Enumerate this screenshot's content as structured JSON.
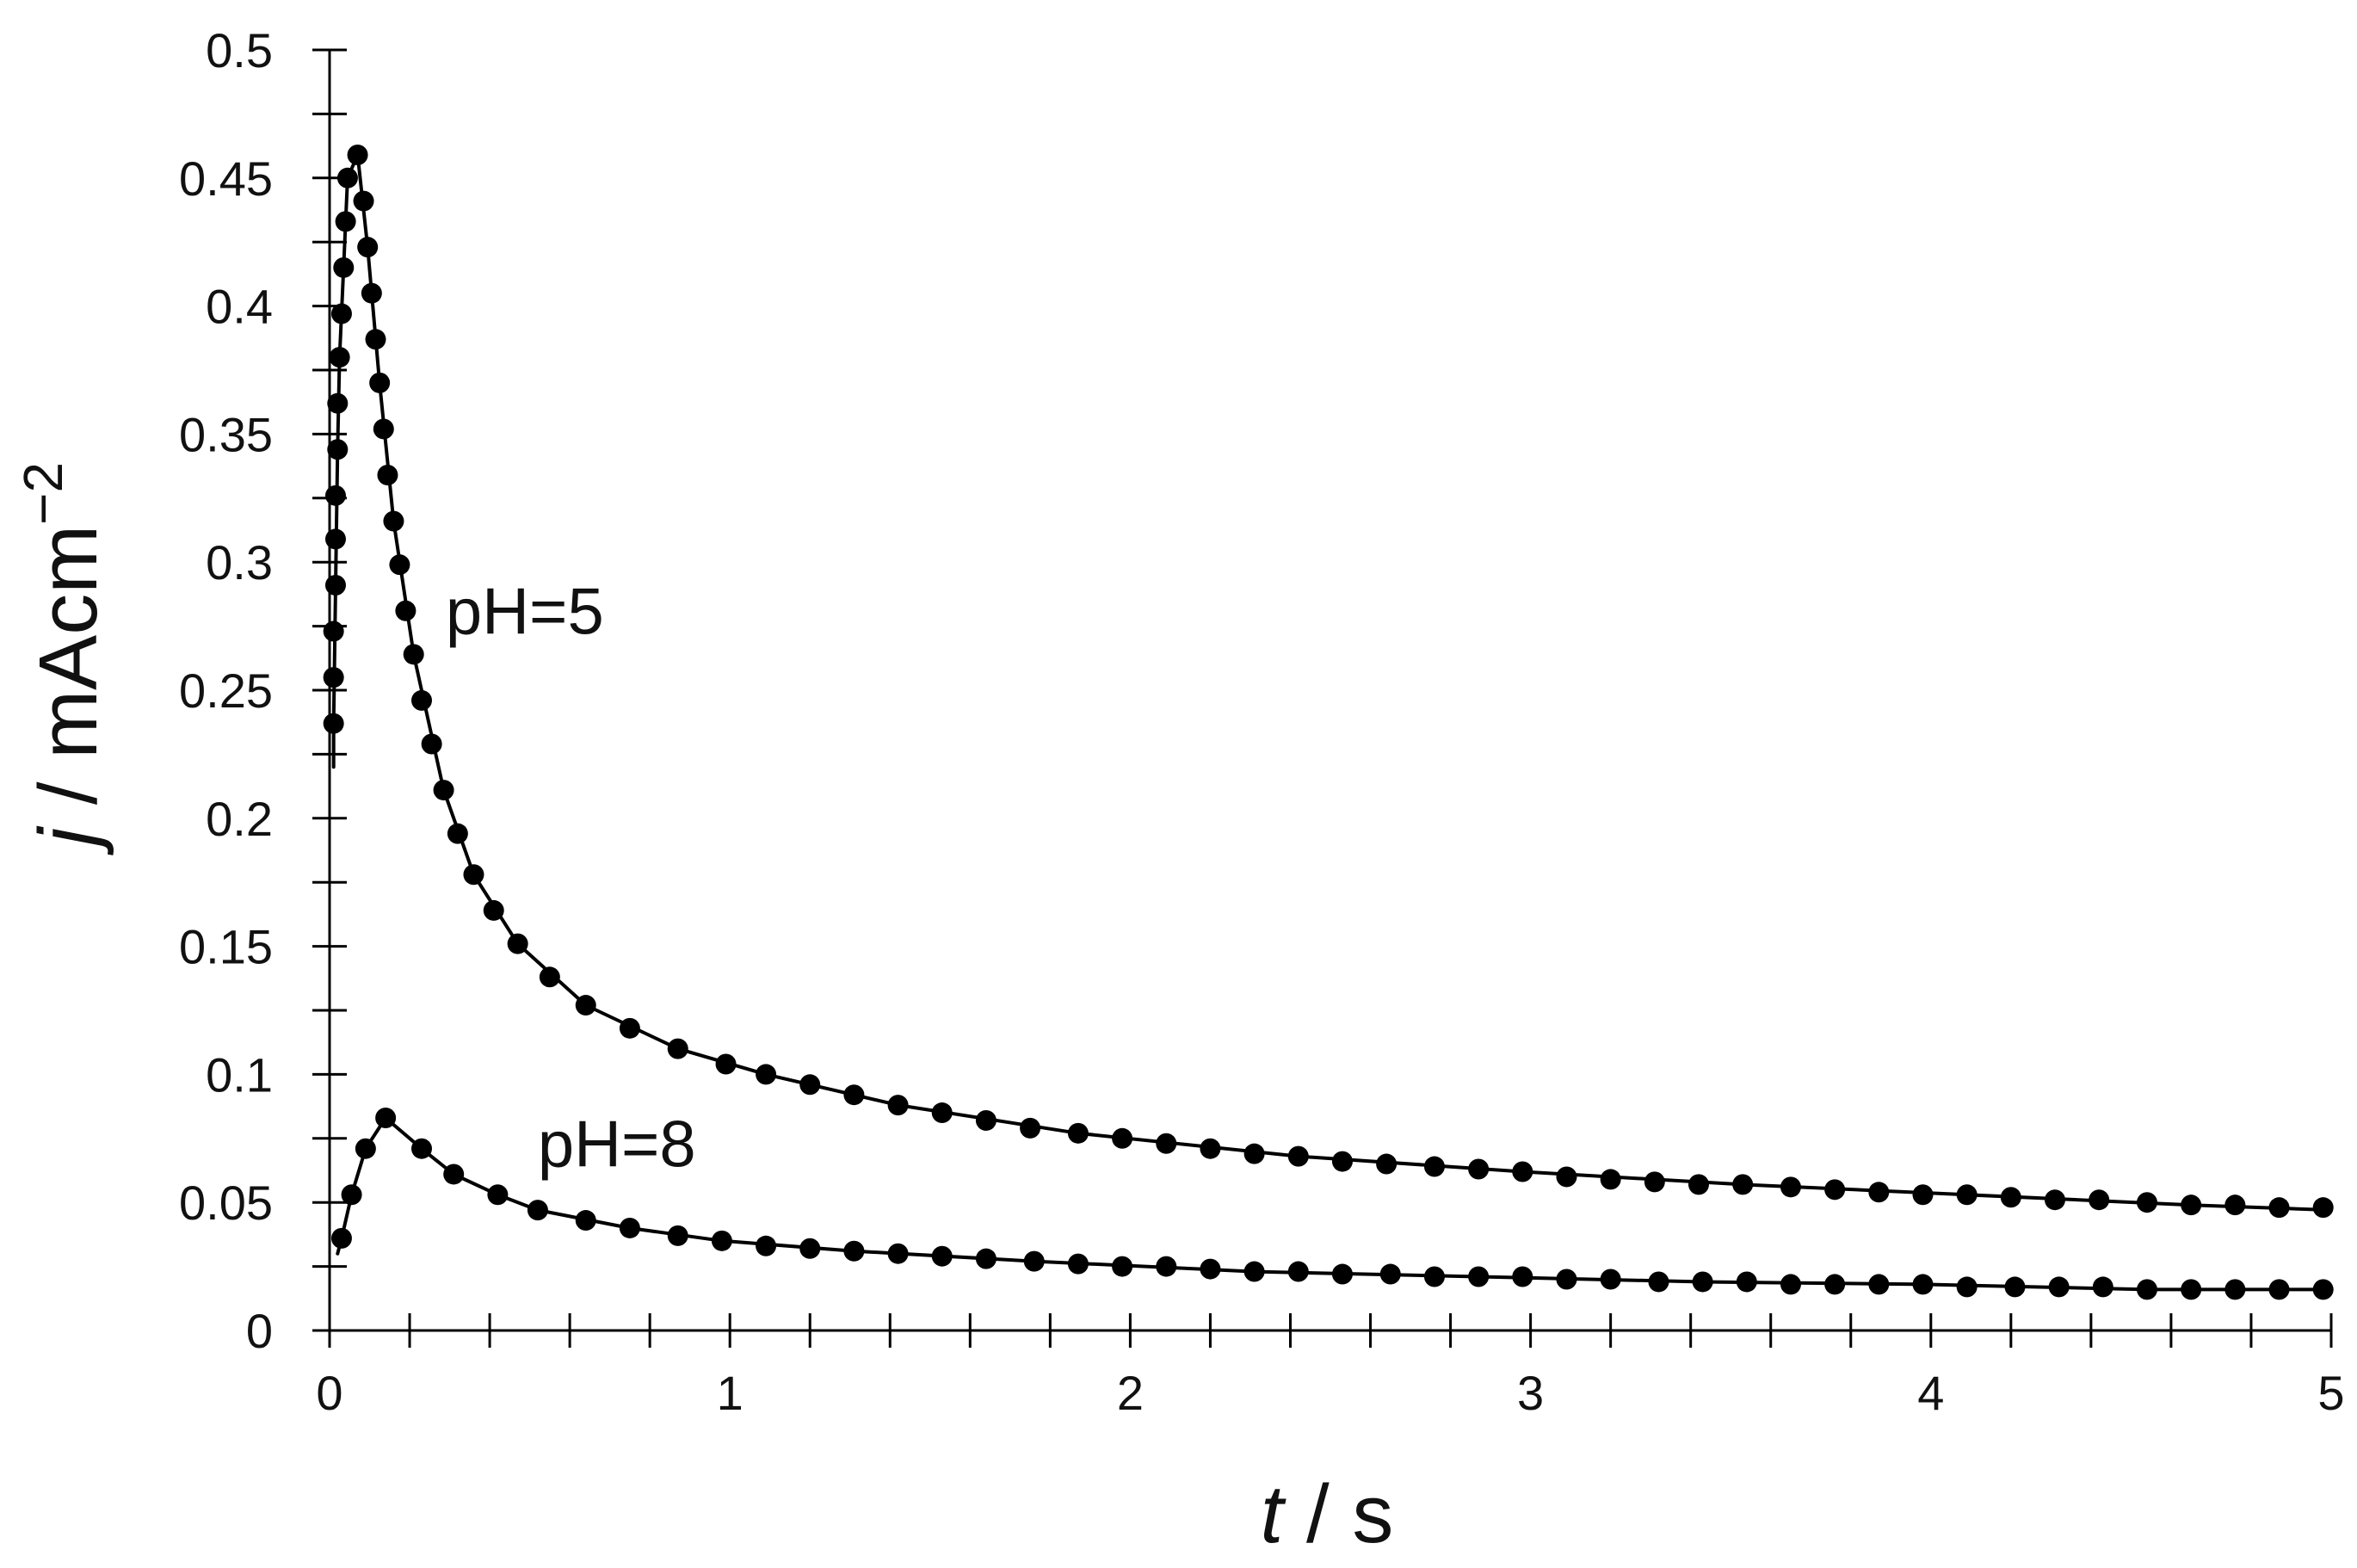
{
  "chart_data": {
    "type": "scatter",
    "title": "",
    "xlabel": {
      "var": "t",
      "unit": " / s"
    },
    "ylabel": {
      "var": "j",
      "unit": " / mAcm",
      "sup": "−2"
    },
    "xlim": [
      0,
      5
    ],
    "ylim": [
      0,
      0.5
    ],
    "x_ticks": [
      0,
      1,
      2,
      3,
      4,
      5
    ],
    "x_tick_labels": [
      "0",
      "1",
      "2",
      "3",
      "4",
      "5"
    ],
    "y_ticks": [
      0,
      0.05,
      0.1,
      0.15,
      0.2,
      0.25,
      0.3,
      0.35,
      0.4,
      0.45,
      0.5
    ],
    "y_tick_labels": [
      "0",
      "0.05",
      "0.1",
      "0.15",
      "0.2",
      "0.25",
      "0.3",
      "0.35",
      "0.4",
      "0.45",
      "0.5"
    ],
    "x_minor_step": 0.2,
    "y_minor_step": 0.025,
    "grid": false,
    "line_color": "#000000",
    "marker_color": "#000000",
    "series": [
      {
        "name": "pH=5",
        "label_at": [
          0.29,
          0.272
        ],
        "points": [
          [
            0.01,
            0.237
          ],
          [
            0.01,
            0.255
          ],
          [
            0.01,
            0.273
          ],
          [
            0.015,
            0.291
          ],
          [
            0.015,
            0.309
          ],
          [
            0.015,
            0.326
          ],
          [
            0.02,
            0.344
          ],
          [
            0.02,
            0.362
          ],
          [
            0.025,
            0.38
          ],
          [
            0.03,
            0.397
          ],
          [
            0.035,
            0.415
          ],
          [
            0.04,
            0.433
          ],
          [
            0.045,
            0.45
          ],
          [
            0.07,
            0.459
          ],
          [
            0.085,
            0.441
          ],
          [
            0.095,
            0.423
          ],
          [
            0.105,
            0.405
          ],
          [
            0.115,
            0.387
          ],
          [
            0.125,
            0.37
          ],
          [
            0.135,
            0.352
          ],
          [
            0.145,
            0.334
          ],
          [
            0.16,
            0.316
          ],
          [
            0.175,
            0.299
          ],
          [
            0.19,
            0.281
          ],
          [
            0.21,
            0.264
          ],
          [
            0.23,
            0.246
          ],
          [
            0.255,
            0.229
          ],
          [
            0.285,
            0.211
          ],
          [
            0.32,
            0.194
          ],
          [
            0.36,
            0.178
          ],
          [
            0.41,
            0.164
          ],
          [
            0.47,
            0.151
          ],
          [
            0.55,
            0.138
          ],
          [
            0.64,
            0.127
          ],
          [
            0.75,
            0.118
          ],
          [
            0.87,
            0.11
          ],
          [
            0.99,
            0.104
          ],
          [
            1.09,
            0.1
          ],
          [
            1.2,
            0.096
          ],
          [
            1.31,
            0.092
          ],
          [
            1.42,
            0.088
          ],
          [
            1.53,
            0.085
          ],
          [
            1.64,
            0.082
          ],
          [
            1.75,
            0.079
          ],
          [
            1.87,
            0.077
          ],
          [
            1.98,
            0.075
          ],
          [
            2.09,
            0.073
          ],
          [
            2.2,
            0.071
          ],
          [
            2.31,
            0.069
          ],
          [
            2.42,
            0.068
          ],
          [
            2.53,
            0.066
          ],
          [
            2.64,
            0.065
          ],
          [
            2.76,
            0.064
          ],
          [
            2.87,
            0.063
          ],
          [
            2.98,
            0.062
          ],
          [
            3.09,
            0.06
          ],
          [
            3.2,
            0.059
          ],
          [
            3.31,
            0.058
          ],
          [
            3.42,
            0.057
          ],
          [
            3.53,
            0.057
          ],
          [
            3.65,
            0.056
          ],
          [
            3.76,
            0.055
          ],
          [
            3.87,
            0.054
          ],
          [
            3.98,
            0.053
          ],
          [
            4.09,
            0.053
          ],
          [
            4.2,
            0.052
          ],
          [
            4.31,
            0.051
          ],
          [
            4.42,
            0.051
          ],
          [
            4.54,
            0.05
          ],
          [
            4.65,
            0.049
          ],
          [
            4.76,
            0.049
          ],
          [
            4.87,
            0.048
          ],
          [
            4.98,
            0.048
          ]
        ]
      },
      {
        "name": "pH=8",
        "label_at": [
          0.52,
          0.064
        ],
        "points": [
          [
            0.03,
            0.036
          ],
          [
            0.055,
            0.053
          ],
          [
            0.09,
            0.071
          ],
          [
            0.14,
            0.083
          ],
          [
            0.23,
            0.071
          ],
          [
            0.31,
            0.061
          ],
          [
            0.42,
            0.053
          ],
          [
            0.52,
            0.047
          ],
          [
            0.64,
            0.043
          ],
          [
            0.75,
            0.04
          ],
          [
            0.87,
            0.037
          ],
          [
            0.98,
            0.035
          ],
          [
            1.09,
            0.033
          ],
          [
            1.2,
            0.032
          ],
          [
            1.31,
            0.031
          ],
          [
            1.42,
            0.03
          ],
          [
            1.53,
            0.029
          ],
          [
            1.64,
            0.028
          ],
          [
            1.76,
            0.027
          ],
          [
            1.87,
            0.026
          ],
          [
            1.98,
            0.025
          ],
          [
            2.09,
            0.025
          ],
          [
            2.2,
            0.024
          ],
          [
            2.31,
            0.023
          ],
          [
            2.42,
            0.023
          ],
          [
            2.53,
            0.022
          ],
          [
            2.65,
            0.022
          ],
          [
            2.76,
            0.021
          ],
          [
            2.87,
            0.021
          ],
          [
            2.98,
            0.021
          ],
          [
            3.09,
            0.02
          ],
          [
            3.2,
            0.02
          ],
          [
            3.32,
            0.019
          ],
          [
            3.43,
            0.019
          ],
          [
            3.54,
            0.019
          ],
          [
            3.65,
            0.018
          ],
          [
            3.76,
            0.018
          ],
          [
            3.87,
            0.018
          ],
          [
            3.98,
            0.018
          ],
          [
            4.09,
            0.017
          ],
          [
            4.21,
            0.017
          ],
          [
            4.32,
            0.017
          ],
          [
            4.43,
            0.017
          ],
          [
            4.54,
            0.016
          ],
          [
            4.65,
            0.016
          ],
          [
            4.76,
            0.016
          ],
          [
            4.87,
            0.016
          ],
          [
            4.98,
            0.016
          ]
        ]
      }
    ],
    "fit_curves": [
      {
        "of": "pH=5",
        "points": [
          [
            0.01,
            0.22
          ],
          [
            0.01,
            0.237
          ],
          [
            0.015,
            0.291
          ],
          [
            0.02,
            0.344
          ],
          [
            0.025,
            0.38
          ],
          [
            0.035,
            0.415
          ],
          [
            0.045,
            0.45
          ],
          [
            0.07,
            0.459
          ],
          [
            0.095,
            0.423
          ],
          [
            0.125,
            0.37
          ],
          [
            0.16,
            0.316
          ],
          [
            0.21,
            0.264
          ],
          [
            0.285,
            0.211
          ],
          [
            0.36,
            0.178
          ],
          [
            0.47,
            0.151
          ],
          [
            0.64,
            0.127
          ],
          [
            0.87,
            0.11
          ],
          [
            1.09,
            0.1
          ],
          [
            1.42,
            0.088
          ],
          [
            1.87,
            0.077
          ],
          [
            2.42,
            0.068
          ],
          [
            2.98,
            0.062
          ],
          [
            3.53,
            0.057
          ],
          [
            4.09,
            0.053
          ],
          [
            4.65,
            0.049
          ],
          [
            5.0,
            0.047
          ]
        ]
      },
      {
        "of": "pH=8",
        "points": [
          [
            0.02,
            0.03
          ],
          [
            0.03,
            0.036
          ],
          [
            0.055,
            0.053
          ],
          [
            0.09,
            0.071
          ],
          [
            0.14,
            0.083
          ],
          [
            0.23,
            0.071
          ],
          [
            0.31,
            0.061
          ],
          [
            0.42,
            0.053
          ],
          [
            0.52,
            0.047
          ],
          [
            0.75,
            0.04
          ],
          [
            0.98,
            0.035
          ],
          [
            1.31,
            0.031
          ],
          [
            1.76,
            0.027
          ],
          [
            2.31,
            0.023
          ],
          [
            2.87,
            0.021
          ],
          [
            3.43,
            0.019
          ],
          [
            3.98,
            0.018
          ],
          [
            4.54,
            0.016
          ],
          [
            5.0,
            0.016
          ]
        ]
      }
    ]
  }
}
